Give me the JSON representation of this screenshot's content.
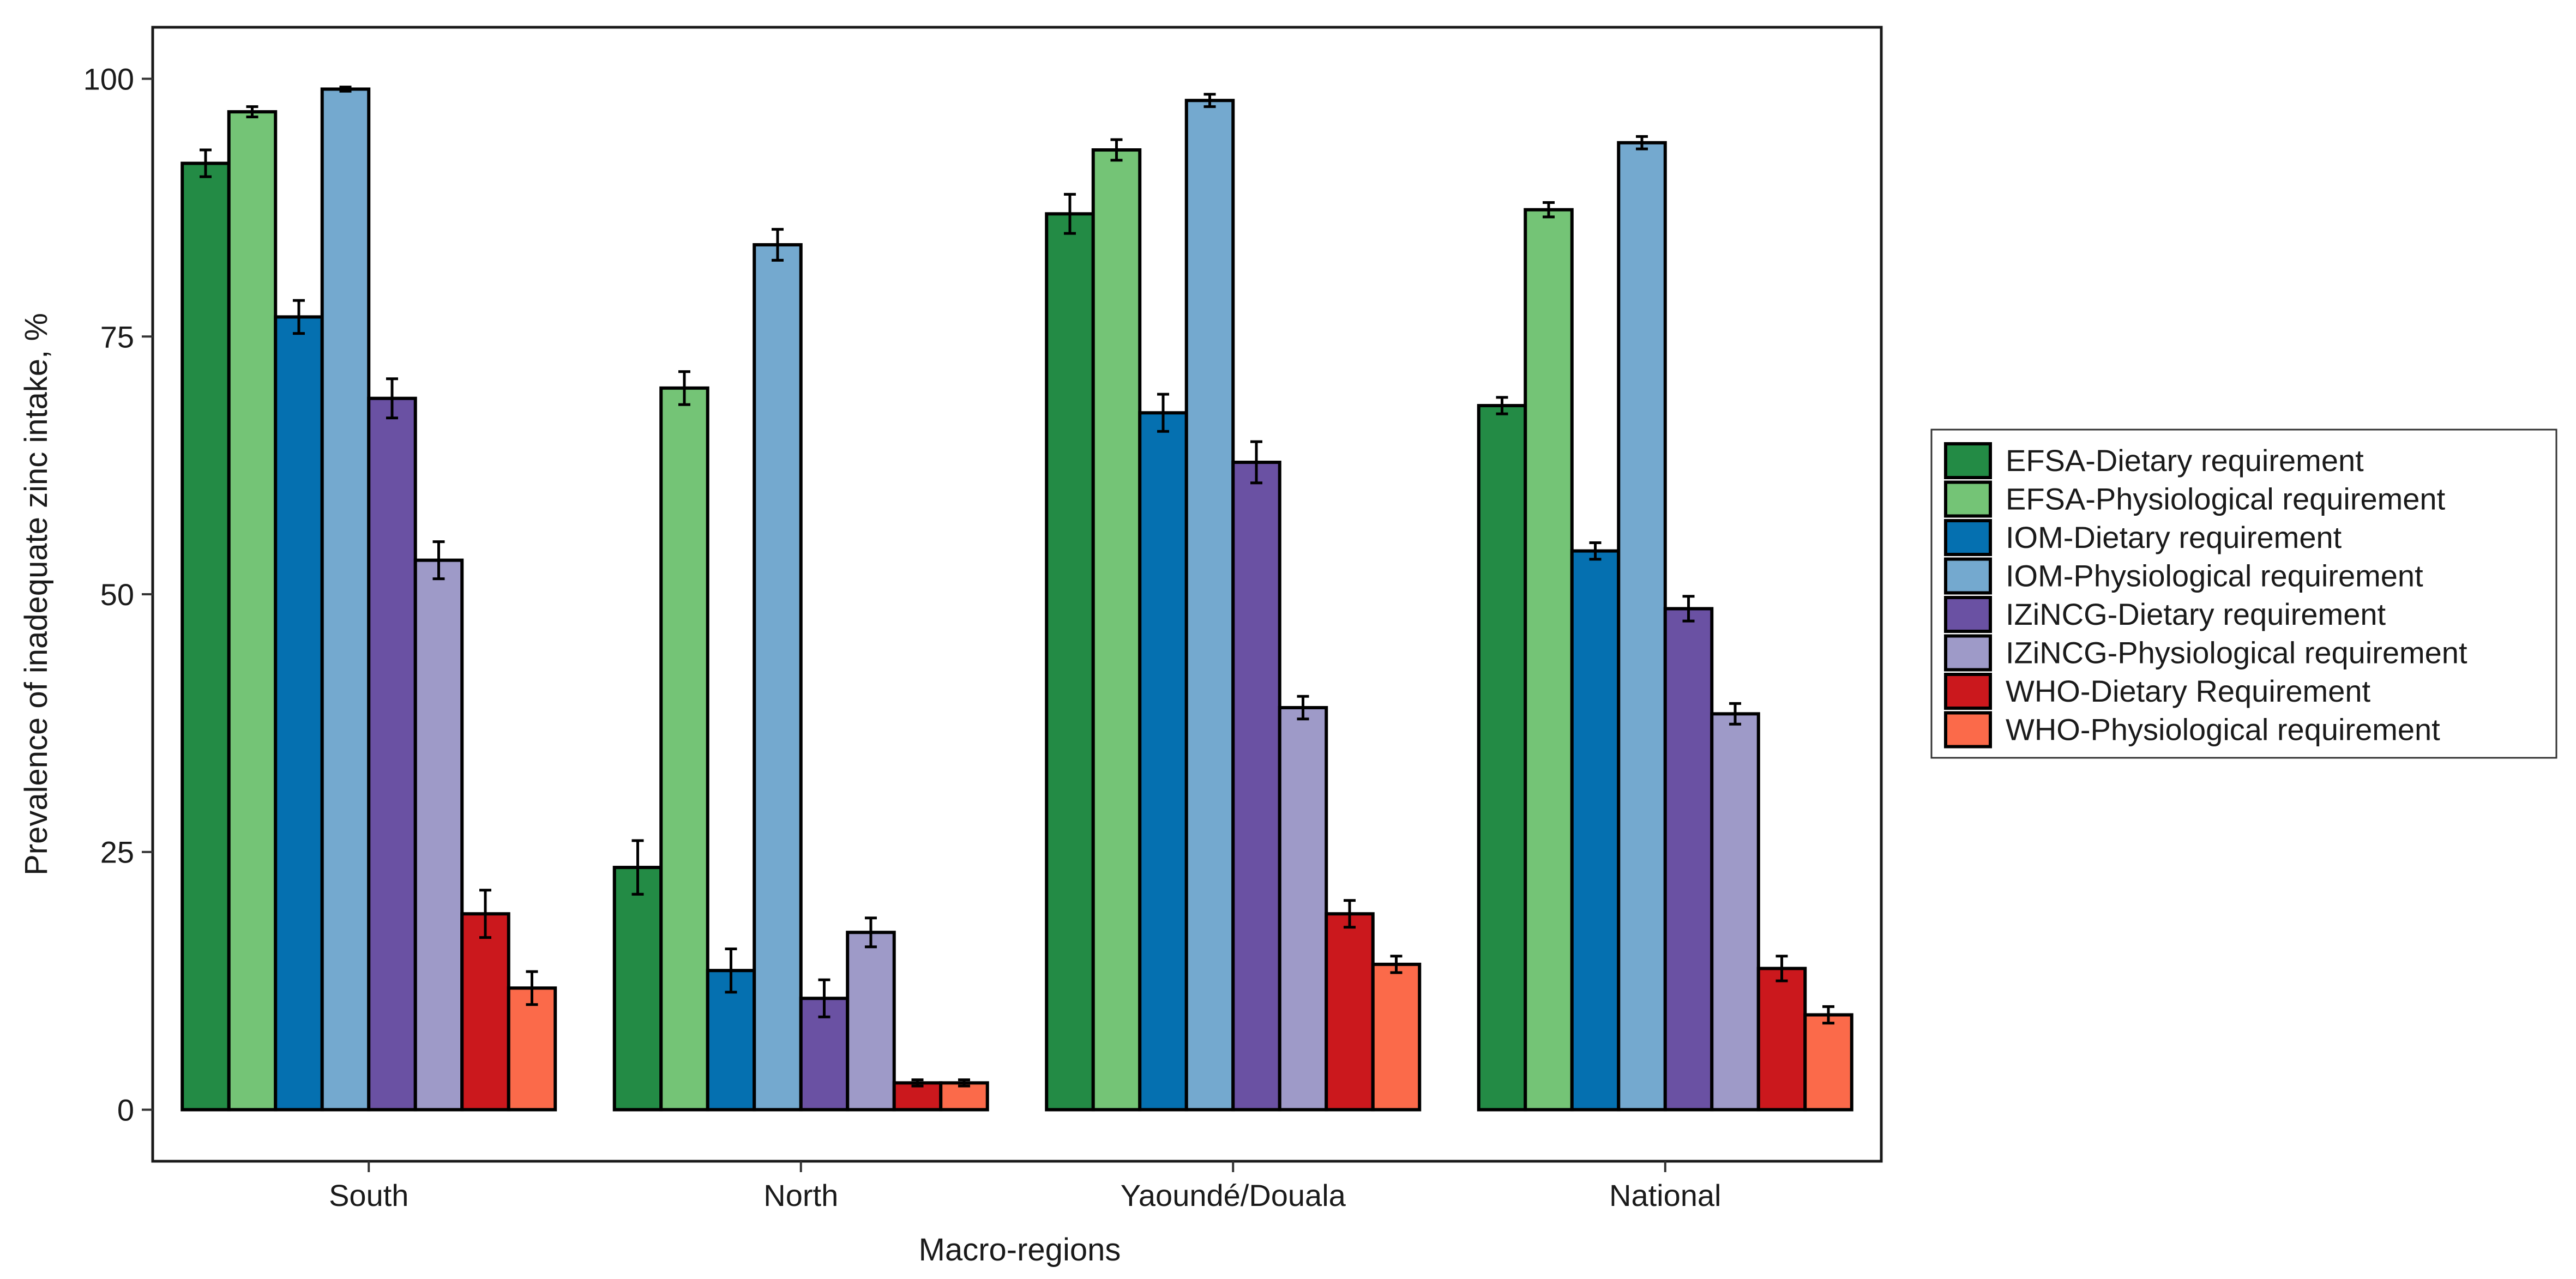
{
  "chart_data": {
    "type": "bar",
    "title": "",
    "xlabel": "Macro-regions",
    "ylabel": "Prevalence of inadequate zinc intake, %",
    "ylim": [
      -5,
      105
    ],
    "yticks": [
      0,
      25,
      50,
      75,
      100
    ],
    "yticklabels": [
      "0",
      "25",
      "50",
      "75",
      "100"
    ],
    "grid": false,
    "legend_position": "right",
    "categories": [
      "South",
      "North",
      "Yaoundé/Douala",
      "National"
    ],
    "series": [
      {
        "name": "EFSA-Dietary requirement",
        "color": "#238b45",
        "values": [
          91.8,
          23.5,
          86.9,
          68.3
        ],
        "err": [
          1.3,
          2.6,
          1.9,
          0.8
        ]
      },
      {
        "name": "EFSA-Physiological requirement",
        "color": "#74c476",
        "values": [
          96.8,
          70.0,
          93.1,
          87.3
        ],
        "err": [
          0.5,
          1.6,
          1.0,
          0.7
        ]
      },
      {
        "name": "IOM-Dietary requirement",
        "color": "#0570b0",
        "values": [
          76.9,
          13.5,
          67.6,
          54.2
        ],
        "err": [
          1.6,
          2.1,
          1.8,
          0.8
        ]
      },
      {
        "name": "IOM-Physiological requirement",
        "color": "#74a9cf",
        "values": [
          99.0,
          83.9,
          97.9,
          93.8
        ],
        "err": [
          0.2,
          1.5,
          0.6,
          0.6
        ]
      },
      {
        "name": "IZiNCG-Dietary requirement",
        "color": "#6a51a3",
        "values": [
          69.0,
          10.8,
          62.8,
          48.6
        ],
        "err": [
          1.9,
          1.8,
          2.0,
          1.2
        ]
      },
      {
        "name": "IZiNCG-Physiological requirement",
        "color": "#9e9ac8",
        "values": [
          53.3,
          17.2,
          39.0,
          38.4
        ],
        "err": [
          1.8,
          1.4,
          1.1,
          1.0
        ]
      },
      {
        "name": "WHO-Dietary Requirement",
        "color": "#cb181d",
        "values": [
          19.0,
          2.6,
          19.0,
          13.7
        ],
        "err": [
          2.3,
          0.3,
          1.3,
          1.2
        ]
      },
      {
        "name": "WHO-Physiological requirement",
        "color": "#fb6a4a",
        "values": [
          11.8,
          2.6,
          14.1,
          9.2
        ],
        "err": [
          1.6,
          0.3,
          0.8,
          0.8
        ]
      }
    ]
  }
}
